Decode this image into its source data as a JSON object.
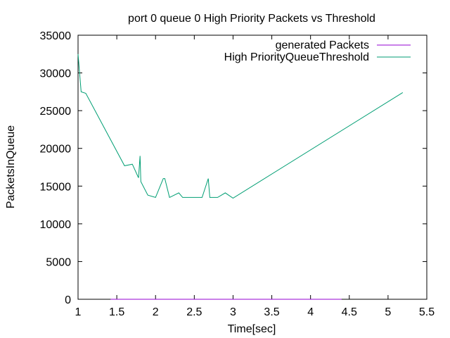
{
  "chart_data": {
    "type": "line",
    "title": "port 0 queue 0 High Priority Packets vs Threshold",
    "xlabel": "Time[sec]",
    "ylabel": "PacketsInQueue",
    "xlim": [
      1,
      5.5
    ],
    "ylim": [
      0,
      35000
    ],
    "xticks": [
      1,
      1.5,
      2,
      2.5,
      3,
      3.5,
      4,
      4.5,
      5,
      5.5
    ],
    "xtick_labels": [
      "1",
      "1.5",
      "2",
      "2.5",
      "3",
      "3.5",
      "4",
      "4.5",
      "5",
      "5.5"
    ],
    "yticks": [
      0,
      5000,
      10000,
      15000,
      20000,
      25000,
      30000,
      35000
    ],
    "ytick_labels": [
      "0",
      "5000",
      "10000",
      "15000",
      "20000",
      "25000",
      "30000",
      "35000"
    ],
    "grid": false,
    "legend_position": "top-right",
    "series": [
      {
        "name": "generated Packets",
        "color": "#9400d3",
        "x": [
          1.42,
          4.4
        ],
        "y": [
          0,
          0
        ]
      },
      {
        "name": "High PriorityQueueThreshold",
        "color": "#009e73",
        "x": [
          1.0,
          1.04,
          1.1,
          1.6,
          1.7,
          1.78,
          1.8,
          1.81,
          1.9,
          2.0,
          2.1,
          2.12,
          2.18,
          2.3,
          2.35,
          2.6,
          2.68,
          2.7,
          2.8,
          2.9,
          3.0,
          5.19
        ],
        "y": [
          32500,
          27500,
          27300,
          17700,
          17900,
          16100,
          19000,
          15600,
          13800,
          13500,
          16000,
          16000,
          13500,
          14100,
          13500,
          13500,
          16000,
          13500,
          13500,
          14100,
          13400,
          27400
        ]
      }
    ]
  }
}
